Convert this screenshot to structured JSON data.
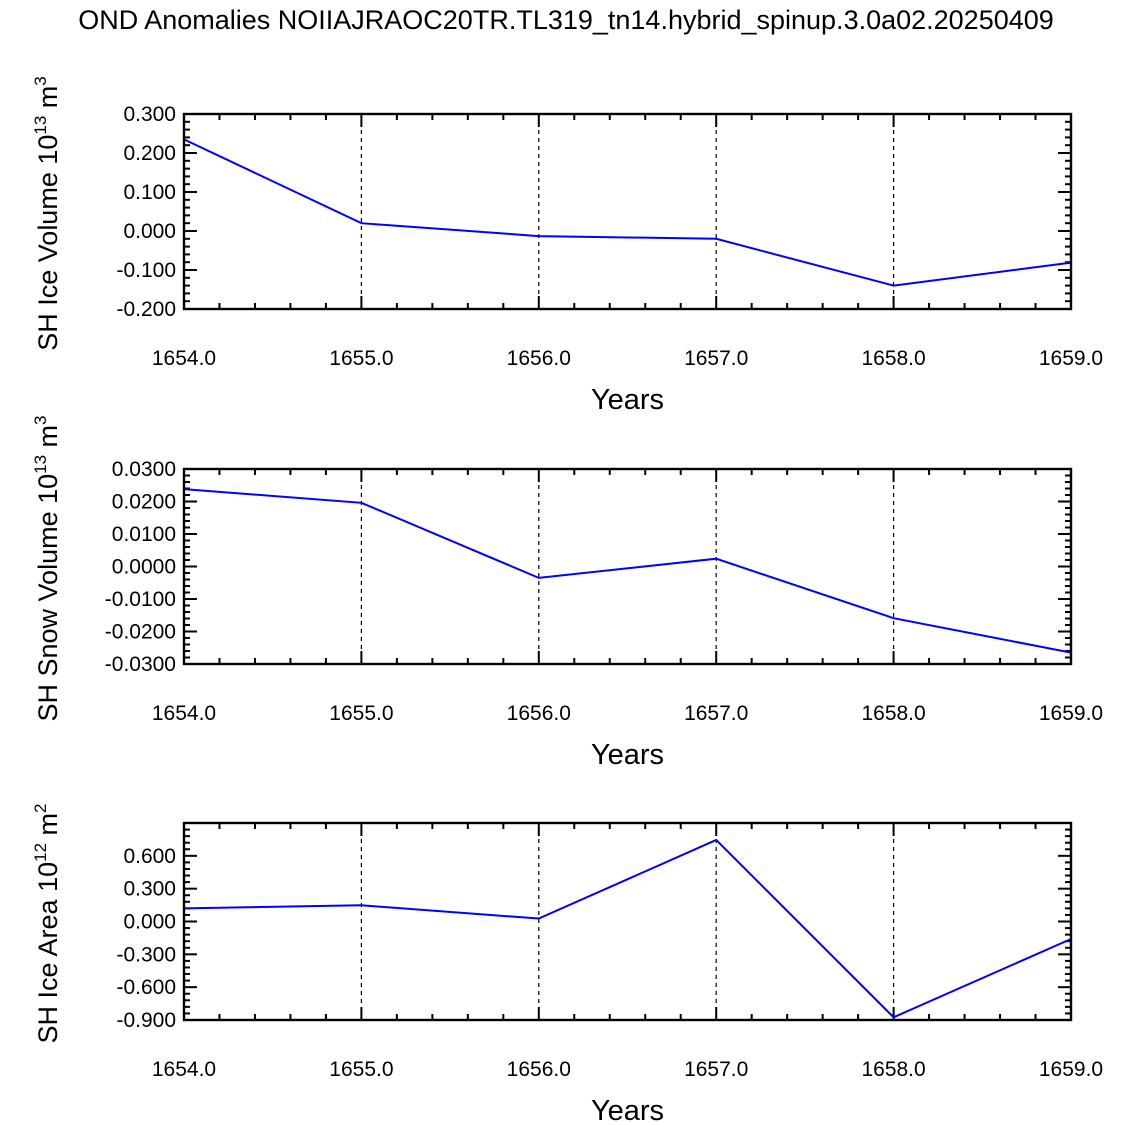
{
  "title": "OND Anomalies NOIIAJRAOC20TR.TL319_tn14.hybrid_spinup.3.0a02.20250409",
  "colors": {
    "line": "#0000ff",
    "axis": "#000000",
    "grid": "#000000"
  },
  "chart_data": [
    {
      "type": "line",
      "ylabel": "SH Ice Volume 10",
      "ylabel_exp": "13",
      "ylabel_unit": "m",
      "ylabel_unit_exp": "3",
      "xlabel": "Years",
      "x": [
        1654,
        1655,
        1656,
        1657,
        1658,
        1659
      ],
      "y": [
        0.235,
        0.02,
        -0.013,
        -0.02,
        -0.14,
        -0.081
      ],
      "xlim": [
        1654,
        1659
      ],
      "ylim": [
        -0.2,
        0.3
      ],
      "yticks": [
        -0.2,
        -0.1,
        0.0,
        0.1,
        0.2,
        0.3
      ],
      "ytick_labels": [
        "-0.200",
        "-0.100",
        "0.000",
        "0.100",
        "0.200",
        "0.300"
      ],
      "xtick_labels": [
        "1654.0",
        "1655.0",
        "1656.0",
        "1657.0",
        "1658.0",
        "1659.0"
      ],
      "grid": "dashed vertical at major x ticks"
    },
    {
      "type": "line",
      "ylabel": "SH Snow Volume 10",
      "ylabel_exp": "13",
      "ylabel_unit": "m",
      "ylabel_unit_exp": "3",
      "xlabel": "Years",
      "x": [
        1654,
        1655,
        1656,
        1657,
        1658,
        1659
      ],
      "y": [
        0.0238,
        0.0196,
        -0.0035,
        0.0024,
        -0.0159,
        -0.0265
      ],
      "xlim": [
        1654,
        1659
      ],
      "ylim": [
        -0.03,
        0.03
      ],
      "yticks": [
        -0.03,
        -0.02,
        -0.01,
        0.0,
        0.01,
        0.02,
        0.03
      ],
      "ytick_labels": [
        "-0.0300",
        "-0.0200",
        "-0.0100",
        "0.0000",
        "0.0100",
        "0.0200",
        "0.0300"
      ],
      "xtick_labels": [
        "1654.0",
        "1655.0",
        "1656.0",
        "1657.0",
        "1658.0",
        "1659.0"
      ],
      "grid": "dashed vertical at major x ticks"
    },
    {
      "type": "line",
      "ylabel": "SH Ice Area 10",
      "ylabel_exp": "12",
      "ylabel_unit": "m",
      "ylabel_unit_exp": "2",
      "xlabel": "Years",
      "x": [
        1654,
        1655,
        1656,
        1657,
        1658,
        1659
      ],
      "y": [
        0.12,
        0.148,
        0.027,
        0.745,
        -0.875,
        -0.16
      ],
      "xlim": [
        1654,
        1659
      ],
      "ylim": [
        -0.9,
        0.9
      ],
      "yticks": [
        -0.9,
        -0.6,
        -0.3,
        0.0,
        0.3,
        0.6
      ],
      "ytick_labels": [
        "-0.900",
        "-0.600",
        "-0.300",
        "0.000",
        "0.300",
        "0.600"
      ],
      "xtick_labels": [
        "1654.0",
        "1655.0",
        "1656.0",
        "1657.0",
        "1658.0",
        "1659.0"
      ],
      "grid": "dashed vertical at major x ticks"
    }
  ]
}
